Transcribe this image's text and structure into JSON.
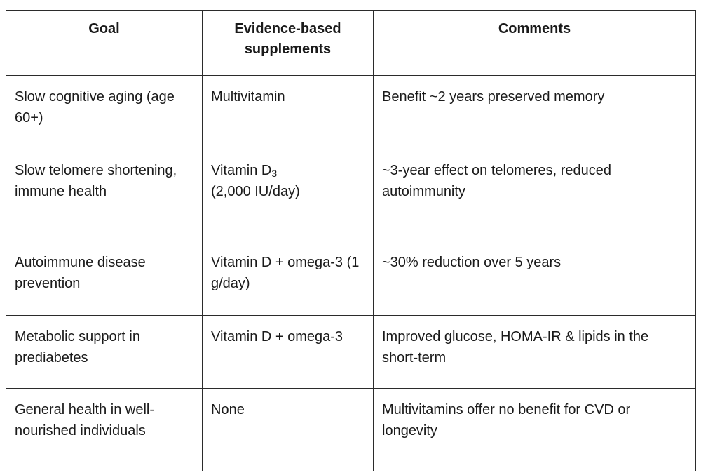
{
  "table": {
    "headers": [
      "Goal",
      "Evidence-based supplements",
      "Comments"
    ],
    "rows": [
      {
        "goal": "Slow cognitive aging (age 60+)",
        "supplement": "Multivitamin",
        "comment": "Benefit ~2 years preserved memory"
      },
      {
        "goal": "Slow telomere shortening, immune health",
        "supplement_main": "Vitamin D",
        "supplement_sub": "3",
        "supplement_dose": "(2,000 IU/day)",
        "comment": "~3-year effect on telomeres, reduced autoimmunity"
      },
      {
        "goal": "Autoimmune disease prevention",
        "supplement": "Vitamin D + omega-3 (1 g/day)",
        "comment": "~30% reduction over 5 years"
      },
      {
        "goal": "Metabolic support in prediabetes",
        "supplement": "Vitamin D + omega-3",
        "comment": "Improved glucose, HOMA-IR & lipids in the short-term"
      },
      {
        "goal": "General health in well-nourished individuals",
        "supplement": "None",
        "comment": "Multivitamins offer no benefit for CVD or longevity"
      }
    ]
  }
}
